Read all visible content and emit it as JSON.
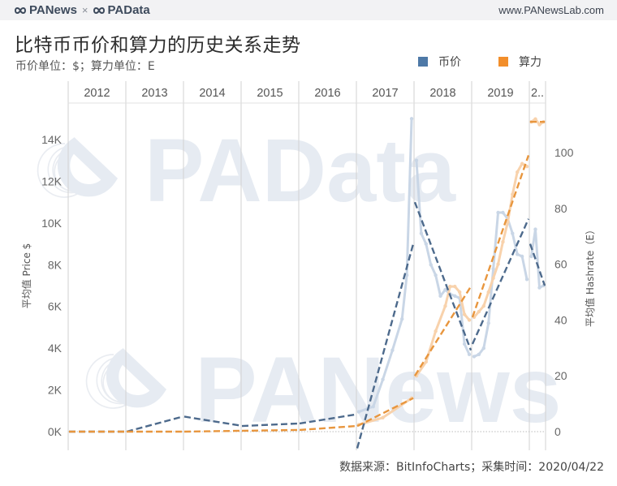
{
  "header": {
    "brand_left": "PANews",
    "brand_separator": "×",
    "brand_right": "PAData",
    "site": "www.PANewsLab.com"
  },
  "title": "比特币币价和算力的历史关系走势",
  "subtitle": "币价单位：$；算力单位：E",
  "legend": [
    {
      "label": "币价",
      "color": "#4e79a7"
    },
    {
      "label": "算力",
      "color": "#f28e2b"
    }
  ],
  "footer": "数据来源：BitInfoCharts；采集时间：2020/04/22",
  "watermarks": [
    "PAData",
    "PANews"
  ],
  "chart_data": {
    "type": "line",
    "title": "比特币币价和算力的历史关系走势",
    "subtitle": "币价单位：$；算力单位：E",
    "columns": [
      "2012",
      "2013",
      "2014",
      "2015",
      "2016",
      "2017",
      "2018",
      "2019",
      "2.."
    ],
    "y_left": {
      "label": "平均值 Price $",
      "ticks": [
        "0K",
        "2K",
        "4K",
        "6K",
        "8K",
        "10K",
        "12K",
        "14K"
      ],
      "range": [
        0,
        14000
      ]
    },
    "y_right": {
      "label": "平均值 Hashrate（E）",
      "ticks": [
        "0",
        "20",
        "40",
        "60",
        "80",
        "100"
      ],
      "range": [
        0,
        100
      ]
    },
    "legend_position": "top-right",
    "grid": "vertical year separators, dotted zero line",
    "series": [
      {
        "name": "币价",
        "axis": "left",
        "color": "#4e79a7",
        "monthly_points_approx": [
          {
            "x": "2017-01",
            "y": 950
          },
          {
            "x": "2017-04",
            "y": 1200
          },
          {
            "x": "2017-06",
            "y": 2500
          },
          {
            "x": "2017-08",
            "y": 3900
          },
          {
            "x": "2017-10",
            "y": 5400
          },
          {
            "x": "2017-11",
            "y": 7500
          },
          {
            "x": "2017-12",
            "y": 15000
          },
          {
            "x": "2018-01",
            "y": 13000
          },
          {
            "x": "2018-02",
            "y": 9500
          },
          {
            "x": "2018-03",
            "y": 9000
          },
          {
            "x": "2018-04",
            "y": 8000
          },
          {
            "x": "2018-05",
            "y": 7500
          },
          {
            "x": "2018-06",
            "y": 6500
          },
          {
            "x": "2018-07",
            "y": 6800
          },
          {
            "x": "2018-08",
            "y": 6600
          },
          {
            "x": "2018-09",
            "y": 6500
          },
          {
            "x": "2018-10",
            "y": 6400
          },
          {
            "x": "2018-11",
            "y": 4200
          },
          {
            "x": "2018-12",
            "y": 3700
          },
          {
            "x": "2019-01",
            "y": 3600
          },
          {
            "x": "2019-02",
            "y": 3700
          },
          {
            "x": "2019-03",
            "y": 4000
          },
          {
            "x": "2019-04",
            "y": 5200
          },
          {
            "x": "2019-05",
            "y": 7800
          },
          {
            "x": "2019-06",
            "y": 10500
          },
          {
            "x": "2019-07",
            "y": 10500
          },
          {
            "x": "2019-08",
            "y": 10200
          },
          {
            "x": "2019-09",
            "y": 9500
          },
          {
            "x": "2019-10",
            "y": 8500
          },
          {
            "x": "2019-11",
            "y": 8400
          },
          {
            "x": "2019-12",
            "y": 7300
          },
          {
            "x": "2020-01",
            "y": 8400
          },
          {
            "x": "2020-02",
            "y": 9700
          },
          {
            "x": "2020-03",
            "y": 6900
          },
          {
            "x": "2020-04",
            "y": 7000
          }
        ],
        "yearly_trend_lines": [
          {
            "year": "2012",
            "start": 0,
            "end": 0
          },
          {
            "year": "2013",
            "start": 0,
            "end": 720
          },
          {
            "year": "2014",
            "start": 720,
            "end": 290
          },
          {
            "year": "2015",
            "start": 270,
            "end": 390
          },
          {
            "year": "2016",
            "start": 390,
            "end": 820
          },
          {
            "year": "2017",
            "start": -800,
            "end": 9000
          },
          {
            "year": "2018",
            "start": 11000,
            "end": 3900
          },
          {
            "year": "2019",
            "start": 4200,
            "end": 10200
          },
          {
            "year": "2020",
            "start": 9000,
            "end": 7000
          }
        ]
      },
      {
        "name": "算力",
        "axis": "right",
        "color": "#f28e2b",
        "monthly_points_approx": [
          {
            "x": "2017-01",
            "y": 2.5
          },
          {
            "x": "2017-06",
            "y": 5
          },
          {
            "x": "2017-12",
            "y": 12
          },
          {
            "x": "2018-01",
            "y": 20
          },
          {
            "x": "2018-03",
            "y": 25
          },
          {
            "x": "2018-05",
            "y": 36
          },
          {
            "x": "2018-07",
            "y": 45
          },
          {
            "x": "2018-08",
            "y": 52
          },
          {
            "x": "2018-09",
            "y": 52
          },
          {
            "x": "2018-10",
            "y": 50
          },
          {
            "x": "2018-11",
            "y": 42
          },
          {
            "x": "2018-12",
            "y": 40
          },
          {
            "x": "2019-01",
            "y": 41
          },
          {
            "x": "2019-02",
            "y": 43
          },
          {
            "x": "2019-03",
            "y": 45
          },
          {
            "x": "2019-04",
            "y": 50
          },
          {
            "x": "2019-05",
            "y": 55
          },
          {
            "x": "2019-06",
            "y": 60
          },
          {
            "x": "2019-07",
            "y": 68
          },
          {
            "x": "2019-08",
            "y": 75
          },
          {
            "x": "2019-09",
            "y": 85
          },
          {
            "x": "2019-10",
            "y": 93
          },
          {
            "x": "2019-11",
            "y": 96
          },
          {
            "x": "2019-12",
            "y": 95
          },
          {
            "x": "2020-01",
            "y": 111
          },
          {
            "x": "2020-02",
            "y": 112
          },
          {
            "x": "2020-03",
            "y": 110
          },
          {
            "x": "2020-04",
            "y": 111
          }
        ],
        "yearly_trend_lines": [
          {
            "year": "2012",
            "start": 0,
            "end": 0
          },
          {
            "year": "2013",
            "start": 0,
            "end": 0
          },
          {
            "year": "2014",
            "start": 0,
            "end": 0.3
          },
          {
            "year": "2015",
            "start": 0.3,
            "end": 0.6
          },
          {
            "year": "2016",
            "start": 0.6,
            "end": 2
          },
          {
            "year": "2017",
            "start": 2,
            "end": 12
          },
          {
            "year": "2018",
            "start": 20,
            "end": 52
          },
          {
            "year": "2019",
            "start": 41,
            "end": 99
          },
          {
            "year": "2020",
            "start": 111,
            "end": 111
          }
        ]
      }
    ]
  }
}
